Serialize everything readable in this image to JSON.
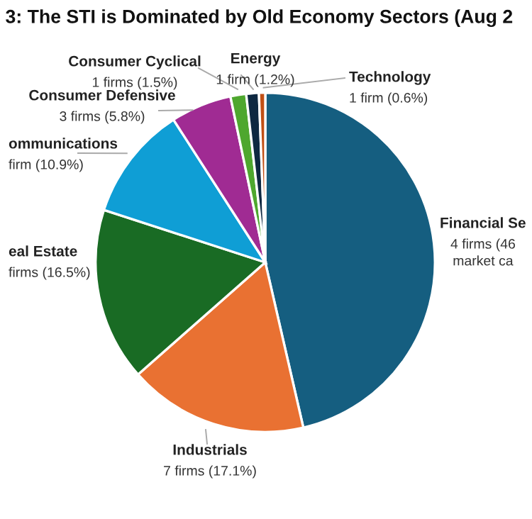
{
  "chart_data": {
    "type": "pie",
    "title": "3: The STI is Dominated by Old Economy Sectors (Aug 2",
    "categories": [
      "Financial Se",
      "Industrials",
      "eal Estate",
      "ommunications",
      "Consumer Defensive",
      "Consumer Cyclical",
      "Energy",
      "Technology"
    ],
    "values": [
      46.4,
      17.1,
      16.5,
      10.9,
      5.8,
      1.5,
      1.2,
      0.6
    ],
    "value_labels": [
      "4 firms (46\nmarket ca",
      "7 firms (17.1%)",
      "firms (16.5%)",
      "firm (10.9%)",
      "3 firms (5.8%)",
      "1 firms (1.5%)",
      "1 firm (1.2%)",
      "1 firm (0.6%)"
    ],
    "colors": [
      "#155e80",
      "#e97132",
      "#196b24",
      "#0f9ed5",
      "#a02b93",
      "#4ea72e",
      "#0e2841",
      "#c04f15"
    ],
    "legend": false
  }
}
